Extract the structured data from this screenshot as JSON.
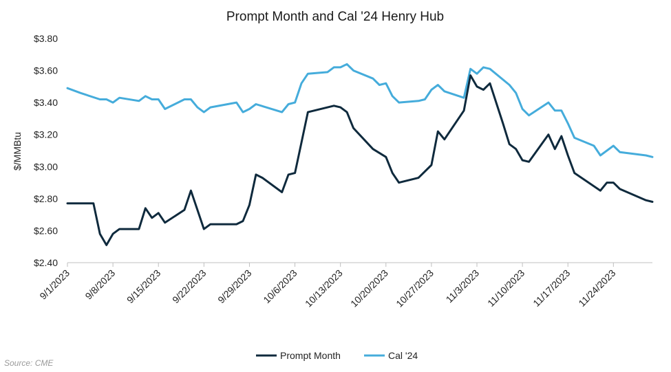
{
  "chart_data": {
    "type": "line",
    "title": "Prompt Month and Cal '24 Henry Hub",
    "xlabel": "",
    "ylabel": "$/MMBtu",
    "ylim": [
      2.4,
      3.8
    ],
    "yticks": [
      "$2.40",
      "$2.60",
      "$2.80",
      "$3.00",
      "$3.20",
      "$3.40",
      "$3.60",
      "$3.80"
    ],
    "xlim": [
      "2023-09-01",
      "2023-11-30"
    ],
    "xticks": [
      "9/1/2023",
      "9/8/2023",
      "9/15/2023",
      "9/22/2023",
      "9/29/2023",
      "10/6/2023",
      "10/13/2023",
      "10/20/2023",
      "10/27/2023",
      "11/3/2023",
      "11/10/2023",
      "11/17/2023",
      "11/24/2023"
    ],
    "grid": false,
    "legend": "bottom",
    "source": "Source: CME",
    "series": [
      {
        "name": "Prompt Month",
        "color": "#0f2a3d",
        "points": [
          [
            "2023-09-01",
            2.77
          ],
          [
            "2023-09-05",
            2.77
          ],
          [
            "2023-09-06",
            2.58
          ],
          [
            "2023-09-07",
            2.51
          ],
          [
            "2023-09-08",
            2.58
          ],
          [
            "2023-09-09",
            2.61
          ],
          [
            "2023-09-12",
            2.61
          ],
          [
            "2023-09-13",
            2.74
          ],
          [
            "2023-09-14",
            2.68
          ],
          [
            "2023-09-15",
            2.71
          ],
          [
            "2023-09-16",
            2.65
          ],
          [
            "2023-09-19",
            2.73
          ],
          [
            "2023-09-20",
            2.85
          ],
          [
            "2023-09-22",
            2.61
          ],
          [
            "2023-09-23",
            2.64
          ],
          [
            "2023-09-27",
            2.64
          ],
          [
            "2023-09-28",
            2.66
          ],
          [
            "2023-09-29",
            2.76
          ],
          [
            "2023-09-30",
            2.95
          ],
          [
            "2023-10-01",
            2.93
          ],
          [
            "2023-10-04",
            2.84
          ],
          [
            "2023-10-05",
            2.95
          ],
          [
            "2023-10-06",
            2.96
          ],
          [
            "2023-10-07",
            3.15
          ],
          [
            "2023-10-08",
            3.34
          ],
          [
            "2023-10-12",
            3.38
          ],
          [
            "2023-10-13",
            3.37
          ],
          [
            "2023-10-14",
            3.34
          ],
          [
            "2023-10-15",
            3.24
          ],
          [
            "2023-10-18",
            3.11
          ],
          [
            "2023-10-20",
            3.06
          ],
          [
            "2023-10-21",
            2.96
          ],
          [
            "2023-10-22",
            2.9
          ],
          [
            "2023-10-25",
            2.93
          ],
          [
            "2023-10-27",
            3.01
          ],
          [
            "2023-10-28",
            3.22
          ],
          [
            "2023-10-29",
            3.17
          ],
          [
            "2023-11-01",
            3.35
          ],
          [
            "2023-11-02",
            3.57
          ],
          [
            "2023-11-03",
            3.5
          ],
          [
            "2023-11-04",
            3.48
          ],
          [
            "2023-11-05",
            3.52
          ],
          [
            "2023-11-07",
            3.27
          ],
          [
            "2023-11-08",
            3.14
          ],
          [
            "2023-11-09",
            3.11
          ],
          [
            "2023-11-10",
            3.04
          ],
          [
            "2023-11-11",
            3.03
          ],
          [
            "2023-11-14",
            3.2
          ],
          [
            "2023-11-15",
            3.11
          ],
          [
            "2023-11-16",
            3.19
          ],
          [
            "2023-11-17",
            3.07
          ],
          [
            "2023-11-18",
            2.96
          ],
          [
            "2023-11-22",
            2.85
          ],
          [
            "2023-11-23",
            2.9
          ],
          [
            "2023-11-24",
            2.9
          ],
          [
            "2023-11-25",
            2.86
          ],
          [
            "2023-11-29",
            2.79
          ],
          [
            "2023-11-30",
            2.78
          ]
        ]
      },
      {
        "name": "Cal '24",
        "color": "#45acdb",
        "points": [
          [
            "2023-09-01",
            3.49
          ],
          [
            "2023-09-03",
            3.46
          ],
          [
            "2023-09-06",
            3.42
          ],
          [
            "2023-09-07",
            3.42
          ],
          [
            "2023-09-08",
            3.4
          ],
          [
            "2023-09-09",
            3.43
          ],
          [
            "2023-09-12",
            3.41
          ],
          [
            "2023-09-13",
            3.44
          ],
          [
            "2023-09-14",
            3.42
          ],
          [
            "2023-09-15",
            3.42
          ],
          [
            "2023-09-16",
            3.36
          ],
          [
            "2023-09-19",
            3.42
          ],
          [
            "2023-09-20",
            3.42
          ],
          [
            "2023-09-21",
            3.37
          ],
          [
            "2023-09-22",
            3.34
          ],
          [
            "2023-09-23",
            3.37
          ],
          [
            "2023-09-27",
            3.4
          ],
          [
            "2023-09-28",
            3.34
          ],
          [
            "2023-09-29",
            3.36
          ],
          [
            "2023-09-30",
            3.39
          ],
          [
            "2023-10-04",
            3.34
          ],
          [
            "2023-10-05",
            3.39
          ],
          [
            "2023-10-06",
            3.4
          ],
          [
            "2023-10-07",
            3.52
          ],
          [
            "2023-10-08",
            3.58
          ],
          [
            "2023-10-11",
            3.59
          ],
          [
            "2023-10-12",
            3.62
          ],
          [
            "2023-10-13",
            3.62
          ],
          [
            "2023-10-14",
            3.64
          ],
          [
            "2023-10-15",
            3.6
          ],
          [
            "2023-10-18",
            3.55
          ],
          [
            "2023-10-19",
            3.51
          ],
          [
            "2023-10-20",
            3.52
          ],
          [
            "2023-10-21",
            3.44
          ],
          [
            "2023-10-22",
            3.4
          ],
          [
            "2023-10-25",
            3.41
          ],
          [
            "2023-10-26",
            3.42
          ],
          [
            "2023-10-27",
            3.48
          ],
          [
            "2023-10-28",
            3.51
          ],
          [
            "2023-10-29",
            3.47
          ],
          [
            "2023-11-01",
            3.43
          ],
          [
            "2023-11-02",
            3.61
          ],
          [
            "2023-11-03",
            3.58
          ],
          [
            "2023-11-04",
            3.62
          ],
          [
            "2023-11-05",
            3.61
          ],
          [
            "2023-11-08",
            3.51
          ],
          [
            "2023-11-09",
            3.46
          ],
          [
            "2023-11-10",
            3.36
          ],
          [
            "2023-11-11",
            3.32
          ],
          [
            "2023-11-14",
            3.4
          ],
          [
            "2023-11-15",
            3.35
          ],
          [
            "2023-11-16",
            3.35
          ],
          [
            "2023-11-17",
            3.27
          ],
          [
            "2023-11-18",
            3.18
          ],
          [
            "2023-11-21",
            3.13
          ],
          [
            "2023-11-22",
            3.07
          ],
          [
            "2023-11-24",
            3.13
          ],
          [
            "2023-11-25",
            3.09
          ],
          [
            "2023-11-29",
            3.07
          ],
          [
            "2023-11-30",
            3.06
          ]
        ]
      }
    ]
  }
}
